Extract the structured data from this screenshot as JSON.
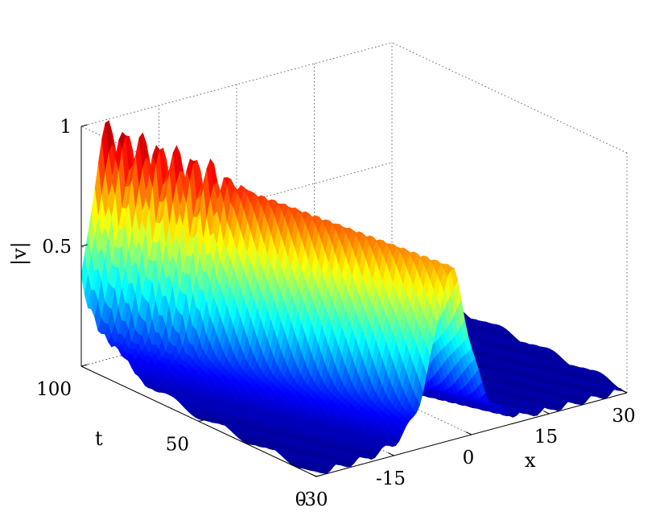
{
  "chart_data": {
    "type": "surface",
    "title": "",
    "xlabel": "x",
    "ylabel": "t",
    "zlabel": "|v|",
    "xlim": [
      -30,
      30
    ],
    "ylim": [
      0,
      100
    ],
    "zlim": [
      0,
      1
    ],
    "x_ticks": [
      "-30",
      "-15",
      "0",
      "15",
      "30"
    ],
    "y_ticks": [
      "0",
      "50",
      "100"
    ],
    "z_ticks": [
      "0.5",
      "1"
    ],
    "colormap": "jet",
    "grid": true,
    "surface": {
      "description_values": "soliton-like ridge of |v| moving along x as t increases",
      "ridge_center_x_at_t0": -4,
      "ridge_center_x_at_t100": -25,
      "ridge_width": 3,
      "ridge_peak_at_t0": 0.69,
      "ridge_peak_at_t100": 0.88,
      "secondary_peak": {
        "t": 62,
        "x": -14,
        "value": 0.96
      },
      "background_level": 0.04,
      "oscillation_peaks_t": [
        100,
        95,
        90,
        85,
        80,
        75,
        70,
        65
      ]
    }
  },
  "colors": {
    "colormap_stops": [
      "#00008f",
      "#0000ff",
      "#00ffff",
      "#ffff00",
      "#ff0000",
      "#800000"
    ],
    "background": "#ffffff",
    "grid": "#404040"
  }
}
